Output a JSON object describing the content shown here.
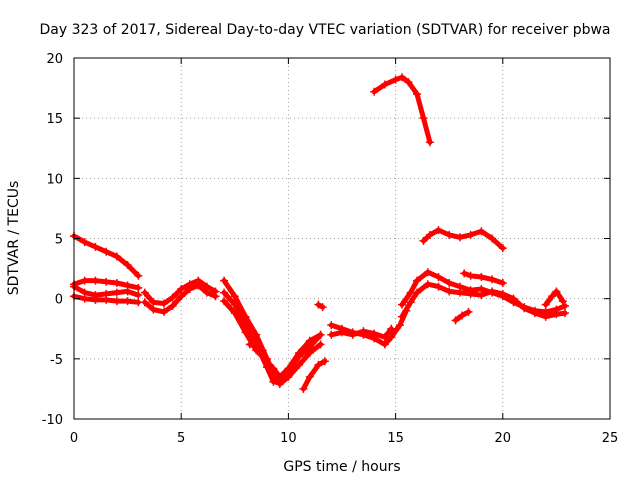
{
  "chart_data": {
    "type": "scatter",
    "title": "Day 323 of 2017, Sidereal Day-to-day VTEC variation (SDTVAR) for receiver pbwa",
    "xlabel": "GPS time / hours",
    "ylabel": "SDTVAR / TECUs",
    "xlim": [
      0,
      25
    ],
    "ylim": [
      -10,
      20
    ],
    "xticks": [
      0,
      5,
      10,
      15,
      20,
      25
    ],
    "yticks": [
      -10,
      -5,
      0,
      5,
      10,
      15,
      20
    ],
    "grid": true,
    "color": "#ff0000",
    "series": [
      {
        "name": "trace-1",
        "x": [
          0.0,
          0.5,
          1.0,
          1.5,
          2.0,
          2.5,
          3.0
        ],
        "y": [
          5.2,
          4.7,
          4.3,
          3.9,
          3.5,
          2.8,
          1.9
        ]
      },
      {
        "name": "trace-2",
        "x": [
          0.0,
          0.5,
          1.0,
          1.5,
          2.0,
          2.5,
          3.0
        ],
        "y": [
          1.2,
          1.5,
          1.5,
          1.4,
          1.3,
          1.1,
          0.9
        ]
      },
      {
        "name": "trace-3",
        "x": [
          0.0,
          0.5,
          1.0,
          1.5,
          2.0,
          2.5,
          3.0
        ],
        "y": [
          1.0,
          0.5,
          0.3,
          0.4,
          0.5,
          0.6,
          0.3
        ]
      },
      {
        "name": "trace-4",
        "x": [
          0.0,
          0.5,
          1.0,
          1.5,
          2.0,
          2.5,
          3.0
        ],
        "y": [
          0.2,
          0.0,
          -0.1,
          -0.1,
          -0.2,
          -0.2,
          -0.3
        ]
      },
      {
        "name": "trace-5",
        "x": [
          3.3,
          3.7,
          4.2,
          4.6,
          5.0,
          5.4,
          5.8,
          6.2,
          6.6
        ],
        "y": [
          0.5,
          -0.3,
          -0.4,
          0.1,
          0.8,
          1.2,
          1.5,
          1.0,
          0.6
        ]
      },
      {
        "name": "trace-6",
        "x": [
          3.3,
          3.7,
          4.2,
          4.6,
          5.0,
          5.4,
          5.8,
          6.2,
          6.6
        ],
        "y": [
          -0.3,
          -0.9,
          -1.1,
          -0.6,
          0.2,
          0.8,
          1.1,
          0.5,
          0.2
        ]
      },
      {
        "name": "trace-7",
        "x": [
          7.0,
          7.5,
          8.0,
          8.5,
          9.0,
          9.3,
          9.6,
          10.0,
          10.5,
          11.0,
          11.5
        ],
        "y": [
          1.5,
          0.2,
          -1.5,
          -3.0,
          -5.0,
          -6.5,
          -7.1,
          -6.5,
          -5.5,
          -4.5,
          -3.8
        ]
      },
      {
        "name": "trace-8",
        "x": [
          7.0,
          7.5,
          8.0,
          8.5,
          9.0,
          9.3,
          9.6,
          10.0,
          10.5,
          11.0,
          11.5
        ],
        "y": [
          0.5,
          -0.5,
          -2.3,
          -3.8,
          -5.7,
          -6.9,
          -7.0,
          -6.0,
          -4.8,
          -4.0,
          -3.0
        ]
      },
      {
        "name": "trace-9",
        "x": [
          7.0,
          7.5,
          8.0,
          8.5,
          9.0,
          9.3,
          9.6,
          10.0,
          10.5,
          11.0,
          11.5
        ],
        "y": [
          -0.2,
          -1.2,
          -2.8,
          -4.3,
          -5.2,
          -5.8,
          -6.5,
          -5.8,
          -4.5,
          -3.5,
          -3.0
        ]
      },
      {
        "name": "trace-10",
        "x": [
          8.2,
          8.5,
          8.8
        ],
        "y": [
          -3.8,
          -4.0,
          -4.3
        ]
      },
      {
        "name": "trace-11",
        "x": [
          10.7,
          11.0,
          11.4,
          11.7
        ],
        "y": [
          -7.5,
          -6.5,
          -5.5,
          -5.2
        ]
      },
      {
        "name": "trace-12",
        "x": [
          11.4,
          11.6
        ],
        "y": [
          -0.5,
          -0.7
        ]
      },
      {
        "name": "trace-13",
        "x": [
          12.0,
          12.5,
          13.0,
          13.5,
          14.0,
          14.5,
          14.8,
          15.2,
          15.5
        ],
        "y": [
          -2.2,
          -2.5,
          -2.8,
          -3.0,
          -3.3,
          -3.8,
          -3.2,
          -2.2,
          -1.0
        ]
      },
      {
        "name": "trace-14",
        "x": [
          12.0,
          12.5,
          13.0,
          13.5,
          14.0,
          14.5,
          14.8
        ],
        "y": [
          -3.0,
          -2.8,
          -3.0,
          -2.7,
          -2.9,
          -3.2,
          -2.5
        ]
      },
      {
        "name": "trace-15",
        "x": [
          14.0,
          14.5,
          15.0,
          15.3,
          15.6,
          16.0,
          16.3,
          16.6
        ],
        "y": [
          17.2,
          17.8,
          18.2,
          18.4,
          18.0,
          17.0,
          15.0,
          13.0
        ]
      },
      {
        "name": "trace-16",
        "x": [
          15.3,
          15.7,
          16.0,
          16.5,
          17.0,
          17.5,
          18.0,
          18.5,
          19.0,
          19.5,
          20.0,
          20.5,
          21.0,
          21.5,
          22.0,
          22.5,
          22.9
        ],
        "y": [
          -0.5,
          0.5,
          1.5,
          2.2,
          1.8,
          1.3,
          1.0,
          0.7,
          0.8,
          0.5,
          0.2,
          -0.3,
          -0.7,
          -1.0,
          -1.1,
          -0.9,
          -0.6
        ]
      },
      {
        "name": "trace-17",
        "x": [
          15.3,
          15.7,
          16.0,
          16.5,
          17.0,
          17.5,
          18.0,
          18.5,
          19.0,
          19.5,
          20.0,
          20.5,
          21.0,
          21.5,
          22.0,
          22.5,
          22.9
        ],
        "y": [
          -1.5,
          -0.3,
          0.5,
          1.2,
          1.0,
          0.6,
          0.5,
          0.4,
          0.3,
          0.6,
          0.4,
          0.0,
          -0.8,
          -1.2,
          -1.5,
          -1.3,
          -1.2
        ]
      },
      {
        "name": "trace-18",
        "x": [
          16.3,
          16.6,
          17.0,
          17.5,
          18.0,
          18.5,
          19.0,
          19.5,
          20.0
        ],
        "y": [
          4.8,
          5.3,
          5.7,
          5.3,
          5.1,
          5.3,
          5.6,
          5.0,
          4.2
        ]
      },
      {
        "name": "trace-19",
        "x": [
          18.2,
          18.5,
          19.0,
          19.5,
          20.0
        ],
        "y": [
          2.1,
          1.9,
          1.8,
          1.6,
          1.3
        ]
      },
      {
        "name": "trace-20",
        "x": [
          17.8,
          18.1,
          18.4
        ],
        "y": [
          -1.8,
          -1.4,
          -1.1
        ]
      },
      {
        "name": "trace-21",
        "x": [
          22.0,
          22.3,
          22.5,
          22.8
        ],
        "y": [
          -0.5,
          0.2,
          0.6,
          -0.2
        ]
      }
    ]
  }
}
